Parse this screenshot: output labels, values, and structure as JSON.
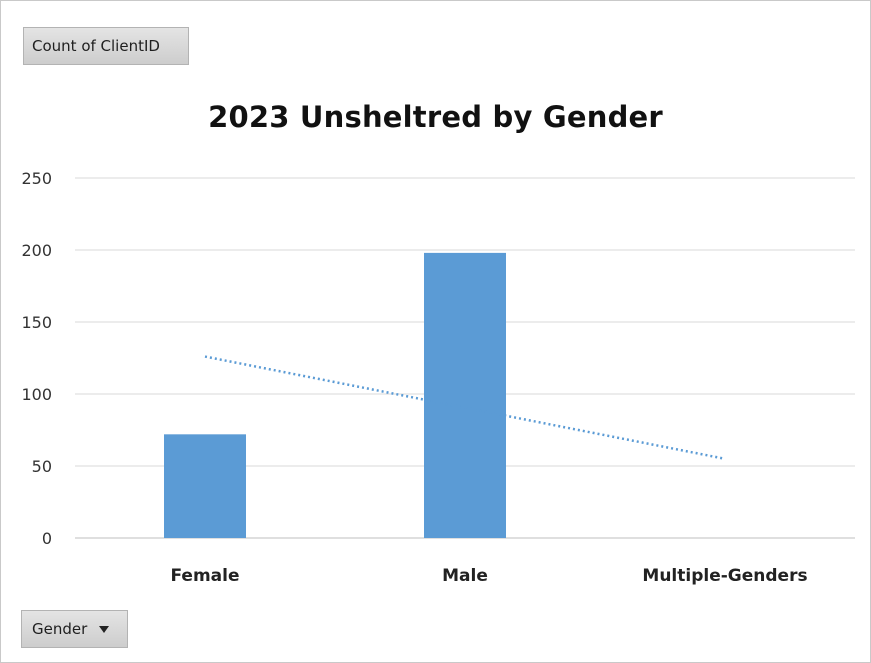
{
  "field_buttons": {
    "value_field": "Count  of ClientID",
    "axis_field": "Gender"
  },
  "chart_data": {
    "type": "bar",
    "title": "2023 Unsheltred by Gender",
    "categories": [
      "Female",
      "Male",
      "Multiple-Genders"
    ],
    "values": [
      72,
      198,
      0
    ],
    "ylim": [
      0,
      250
    ],
    "yticks": [
      0,
      50,
      100,
      150,
      200,
      250
    ],
    "grid": true,
    "legend": "none",
    "trendline": {
      "type": "linear",
      "style": "dotted",
      "start": 126,
      "end": 55
    },
    "colors": {
      "bar": "#5b9bd5",
      "trendline": "#5b9bd5",
      "grid": "#d9d9d9"
    }
  }
}
